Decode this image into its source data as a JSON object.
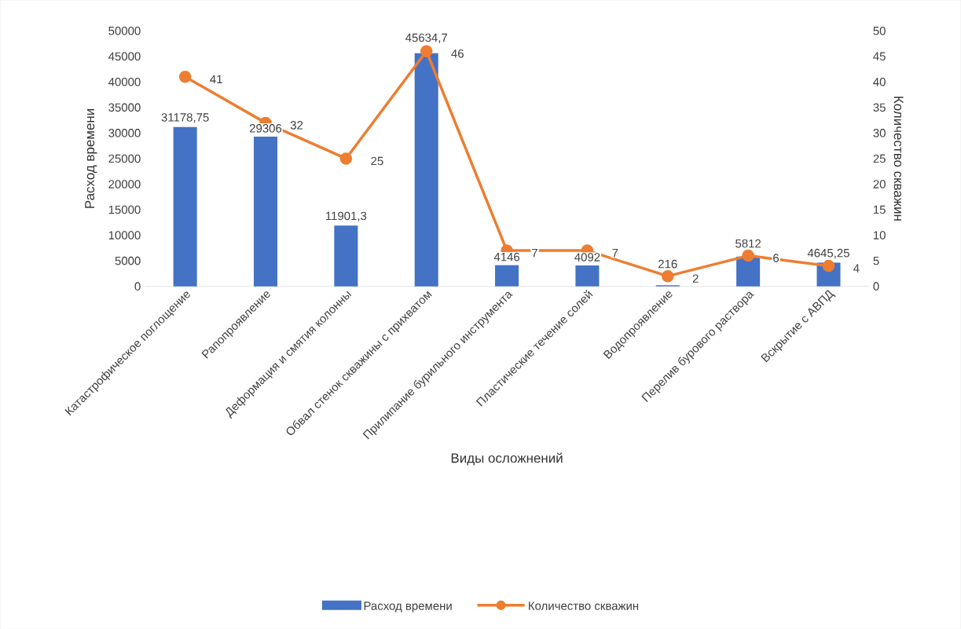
{
  "chart_data": {
    "type": "bar",
    "xlabel": "Виды осложнений",
    "ylabel": "Расход времени",
    "y2label": "Количество скважин",
    "categories": [
      "Катастрофическое поглощение",
      "Рапопроявление",
      "Деформация и смятия колонны",
      "Обвал стенок скважины с прихватом",
      "Прилипание бурильного инструмента",
      "Пластические течение солей",
      "Водопроявление",
      "Перелив бурового раствора",
      "Вскрытие с АВПД"
    ],
    "series": [
      {
        "name": "Расход времени",
        "color": "#4472c4",
        "values": [
          31178.75,
          29306,
          11901.3,
          45634.7,
          4146,
          4092,
          216,
          5812,
          4645.25
        ],
        "value_labels": [
          "31178,75",
          "29306",
          "11901,3",
          "45634,7",
          "4146",
          "4092",
          "216",
          "5812",
          "4645,25"
        ]
      },
      {
        "name": "Количество скважин",
        "type": "line",
        "axis": "y2",
        "color": "#ed7d31",
        "values": [
          41,
          32,
          25,
          46,
          7,
          7,
          2,
          6,
          4
        ],
        "value_labels": [
          "41",
          "32",
          "25",
          "46",
          "7",
          "7",
          "2",
          "6",
          "4"
        ]
      }
    ],
    "ylim": [
      0,
      50000
    ],
    "yticks": [
      0,
      5000,
      10000,
      15000,
      20000,
      25000,
      30000,
      35000,
      40000,
      45000,
      50000
    ],
    "y2lim": [
      0,
      50
    ],
    "y2ticks": [
      0,
      5,
      10,
      15,
      20,
      25,
      30,
      35,
      40,
      45,
      50
    ],
    "marker": "circle",
    "legend": "bottom",
    "grid": false
  }
}
